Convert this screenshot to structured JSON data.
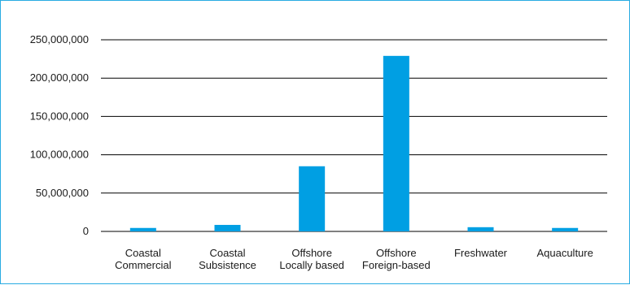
{
  "chart_data": {
    "type": "bar",
    "title": "",
    "xlabel": "",
    "ylabel": "",
    "ylim": [
      0,
      250000000
    ],
    "yticks": [
      0,
      50000000,
      100000000,
      150000000,
      200000000,
      250000000
    ],
    "ytick_labels": [
      "0",
      "50,000,000",
      "100,000,000",
      "150,000,000",
      "200,000,000",
      "250,000,000"
    ],
    "grid": true,
    "legend": "none",
    "categories": [
      [
        "Coastal",
        "Commercial"
      ],
      [
        "Coastal",
        "Subsistence"
      ],
      [
        "Offshore",
        "Locally based"
      ],
      [
        "Offshore",
        "Foreign-based"
      ],
      [
        "Freshwater"
      ],
      [
        "Aquaculture"
      ]
    ],
    "values": [
      4500000,
      8500000,
      85000000,
      229000000,
      5500000,
      4500000
    ],
    "colors": {
      "bar": "#009fe3",
      "grid": "#000000",
      "frame": "#29abe2"
    }
  }
}
